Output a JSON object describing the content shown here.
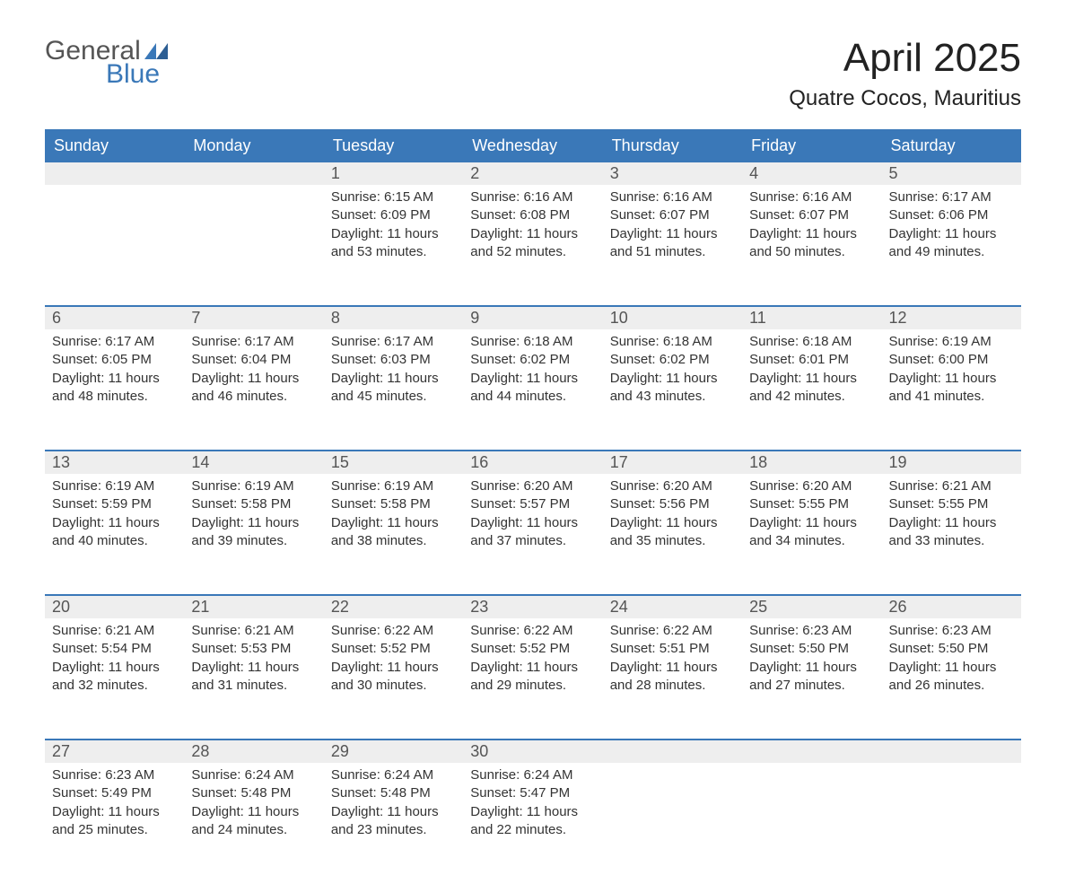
{
  "logo": {
    "general": "General",
    "blue": "Blue",
    "flag_color": "#3a78b8"
  },
  "header": {
    "month_title": "April 2025",
    "location": "Quatre Cocos, Mauritius"
  },
  "colors": {
    "header_bg": "#3a78b8",
    "header_text": "#ffffff",
    "daynum_bg": "#eeeeee",
    "border": "#3a78b8",
    "body_bg": "#ffffff",
    "text": "#333333"
  },
  "day_names": [
    "Sunday",
    "Monday",
    "Tuesday",
    "Wednesday",
    "Thursday",
    "Friday",
    "Saturday"
  ],
  "weeks": [
    {
      "days": [
        null,
        null,
        {
          "num": "1",
          "sunrise": "Sunrise: 6:15 AM",
          "sunset": "Sunset: 6:09 PM",
          "daylight1": "Daylight: 11 hours",
          "daylight2": "and 53 minutes."
        },
        {
          "num": "2",
          "sunrise": "Sunrise: 6:16 AM",
          "sunset": "Sunset: 6:08 PM",
          "daylight1": "Daylight: 11 hours",
          "daylight2": "and 52 minutes."
        },
        {
          "num": "3",
          "sunrise": "Sunrise: 6:16 AM",
          "sunset": "Sunset: 6:07 PM",
          "daylight1": "Daylight: 11 hours",
          "daylight2": "and 51 minutes."
        },
        {
          "num": "4",
          "sunrise": "Sunrise: 6:16 AM",
          "sunset": "Sunset: 6:07 PM",
          "daylight1": "Daylight: 11 hours",
          "daylight2": "and 50 minutes."
        },
        {
          "num": "5",
          "sunrise": "Sunrise: 6:17 AM",
          "sunset": "Sunset: 6:06 PM",
          "daylight1": "Daylight: 11 hours",
          "daylight2": "and 49 minutes."
        }
      ]
    },
    {
      "days": [
        {
          "num": "6",
          "sunrise": "Sunrise: 6:17 AM",
          "sunset": "Sunset: 6:05 PM",
          "daylight1": "Daylight: 11 hours",
          "daylight2": "and 48 minutes."
        },
        {
          "num": "7",
          "sunrise": "Sunrise: 6:17 AM",
          "sunset": "Sunset: 6:04 PM",
          "daylight1": "Daylight: 11 hours",
          "daylight2": "and 46 minutes."
        },
        {
          "num": "8",
          "sunrise": "Sunrise: 6:17 AM",
          "sunset": "Sunset: 6:03 PM",
          "daylight1": "Daylight: 11 hours",
          "daylight2": "and 45 minutes."
        },
        {
          "num": "9",
          "sunrise": "Sunrise: 6:18 AM",
          "sunset": "Sunset: 6:02 PM",
          "daylight1": "Daylight: 11 hours",
          "daylight2": "and 44 minutes."
        },
        {
          "num": "10",
          "sunrise": "Sunrise: 6:18 AM",
          "sunset": "Sunset: 6:02 PM",
          "daylight1": "Daylight: 11 hours",
          "daylight2": "and 43 minutes."
        },
        {
          "num": "11",
          "sunrise": "Sunrise: 6:18 AM",
          "sunset": "Sunset: 6:01 PM",
          "daylight1": "Daylight: 11 hours",
          "daylight2": "and 42 minutes."
        },
        {
          "num": "12",
          "sunrise": "Sunrise: 6:19 AM",
          "sunset": "Sunset: 6:00 PM",
          "daylight1": "Daylight: 11 hours",
          "daylight2": "and 41 minutes."
        }
      ]
    },
    {
      "days": [
        {
          "num": "13",
          "sunrise": "Sunrise: 6:19 AM",
          "sunset": "Sunset: 5:59 PM",
          "daylight1": "Daylight: 11 hours",
          "daylight2": "and 40 minutes."
        },
        {
          "num": "14",
          "sunrise": "Sunrise: 6:19 AM",
          "sunset": "Sunset: 5:58 PM",
          "daylight1": "Daylight: 11 hours",
          "daylight2": "and 39 minutes."
        },
        {
          "num": "15",
          "sunrise": "Sunrise: 6:19 AM",
          "sunset": "Sunset: 5:58 PM",
          "daylight1": "Daylight: 11 hours",
          "daylight2": "and 38 minutes."
        },
        {
          "num": "16",
          "sunrise": "Sunrise: 6:20 AM",
          "sunset": "Sunset: 5:57 PM",
          "daylight1": "Daylight: 11 hours",
          "daylight2": "and 37 minutes."
        },
        {
          "num": "17",
          "sunrise": "Sunrise: 6:20 AM",
          "sunset": "Sunset: 5:56 PM",
          "daylight1": "Daylight: 11 hours",
          "daylight2": "and 35 minutes."
        },
        {
          "num": "18",
          "sunrise": "Sunrise: 6:20 AM",
          "sunset": "Sunset: 5:55 PM",
          "daylight1": "Daylight: 11 hours",
          "daylight2": "and 34 minutes."
        },
        {
          "num": "19",
          "sunrise": "Sunrise: 6:21 AM",
          "sunset": "Sunset: 5:55 PM",
          "daylight1": "Daylight: 11 hours",
          "daylight2": "and 33 minutes."
        }
      ]
    },
    {
      "days": [
        {
          "num": "20",
          "sunrise": "Sunrise: 6:21 AM",
          "sunset": "Sunset: 5:54 PM",
          "daylight1": "Daylight: 11 hours",
          "daylight2": "and 32 minutes."
        },
        {
          "num": "21",
          "sunrise": "Sunrise: 6:21 AM",
          "sunset": "Sunset: 5:53 PM",
          "daylight1": "Daylight: 11 hours",
          "daylight2": "and 31 minutes."
        },
        {
          "num": "22",
          "sunrise": "Sunrise: 6:22 AM",
          "sunset": "Sunset: 5:52 PM",
          "daylight1": "Daylight: 11 hours",
          "daylight2": "and 30 minutes."
        },
        {
          "num": "23",
          "sunrise": "Sunrise: 6:22 AM",
          "sunset": "Sunset: 5:52 PM",
          "daylight1": "Daylight: 11 hours",
          "daylight2": "and 29 minutes."
        },
        {
          "num": "24",
          "sunrise": "Sunrise: 6:22 AM",
          "sunset": "Sunset: 5:51 PM",
          "daylight1": "Daylight: 11 hours",
          "daylight2": "and 28 minutes."
        },
        {
          "num": "25",
          "sunrise": "Sunrise: 6:23 AM",
          "sunset": "Sunset: 5:50 PM",
          "daylight1": "Daylight: 11 hours",
          "daylight2": "and 27 minutes."
        },
        {
          "num": "26",
          "sunrise": "Sunrise: 6:23 AM",
          "sunset": "Sunset: 5:50 PM",
          "daylight1": "Daylight: 11 hours",
          "daylight2": "and 26 minutes."
        }
      ]
    },
    {
      "days": [
        {
          "num": "27",
          "sunrise": "Sunrise: 6:23 AM",
          "sunset": "Sunset: 5:49 PM",
          "daylight1": "Daylight: 11 hours",
          "daylight2": "and 25 minutes."
        },
        {
          "num": "28",
          "sunrise": "Sunrise: 6:24 AM",
          "sunset": "Sunset: 5:48 PM",
          "daylight1": "Daylight: 11 hours",
          "daylight2": "and 24 minutes."
        },
        {
          "num": "29",
          "sunrise": "Sunrise: 6:24 AM",
          "sunset": "Sunset: 5:48 PM",
          "daylight1": "Daylight: 11 hours",
          "daylight2": "and 23 minutes."
        },
        {
          "num": "30",
          "sunrise": "Sunrise: 6:24 AM",
          "sunset": "Sunset: 5:47 PM",
          "daylight1": "Daylight: 11 hours",
          "daylight2": "and 22 minutes."
        },
        null,
        null,
        null
      ]
    }
  ]
}
